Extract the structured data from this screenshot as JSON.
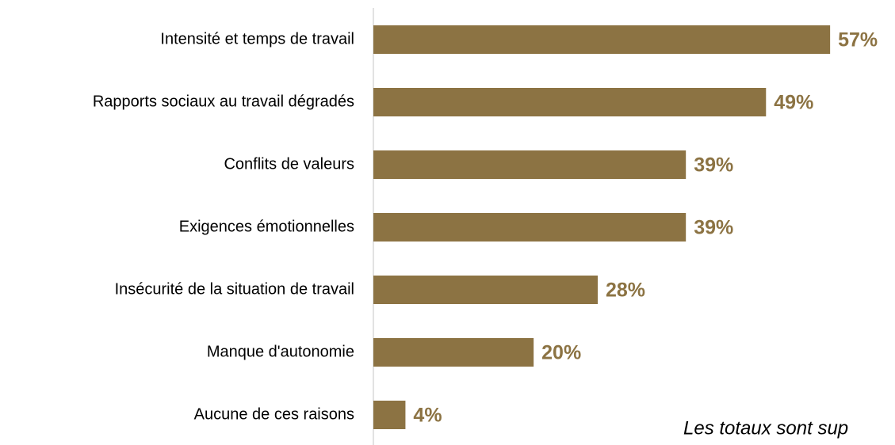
{
  "chart_data": {
    "type": "bar",
    "orientation": "horizontal",
    "categories": [
      "Intensité et temps de travail",
      "Rapports sociaux au travail dégradés",
      "Conflits de valeurs",
      "Exigences émotionnelles",
      "Insécurité de la situation de travail",
      "Manque d'autonomie",
      "Aucune de ces raisons"
    ],
    "values": [
      57,
      49,
      39,
      39,
      28,
      20,
      4
    ],
    "value_labels": [
      "57%",
      "49%",
      "39%",
      "39%",
      "28%",
      "20%",
      "4%"
    ],
    "color": "#8c7343",
    "xlim": [
      0,
      65
    ],
    "annotation": "Les totaux sont sup"
  }
}
